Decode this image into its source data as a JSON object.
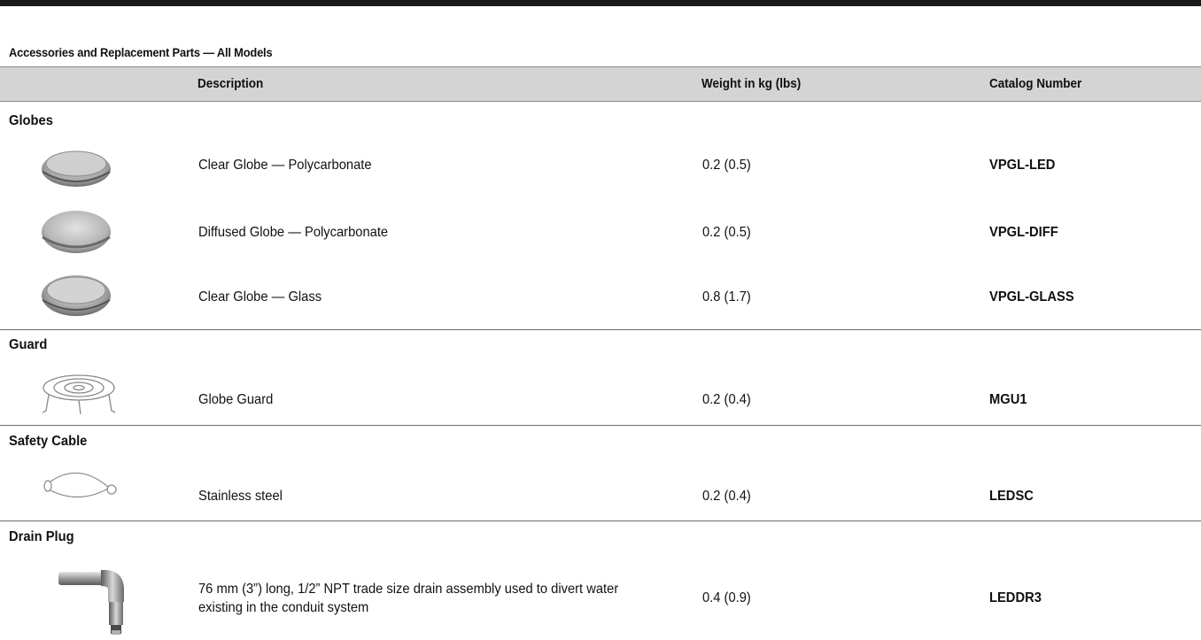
{
  "table": {
    "title": "Accessories and Replacement Parts — All Models",
    "headers": {
      "description": "Description",
      "weight": "Weight in kg (lbs)",
      "catalog": "Catalog Number"
    }
  },
  "sections": [
    {
      "label": "Globes",
      "rows": [
        {
          "icon": "clear-globe-icon",
          "description": "Clear Globe — Polycarbonate",
          "weight": "0.2 (0.5)",
          "catalog": "VPGL-LED"
        },
        {
          "icon": "diffused-globe-icon",
          "description": "Diffused Globe — Polycarbonate",
          "weight": "0.2 (0.5)",
          "catalog": "VPGL-DIFF"
        },
        {
          "icon": "glass-globe-icon",
          "description": "Clear Globe — Glass",
          "weight": "0.8 (1.7)",
          "catalog": "VPGL-GLASS"
        }
      ]
    },
    {
      "label": "Guard",
      "rows": [
        {
          "icon": "globe-guard-icon",
          "description": "Globe Guard",
          "weight": "0.2 (0.4)",
          "catalog": "MGU1"
        }
      ]
    },
    {
      "label": "Safety Cable",
      "rows": [
        {
          "icon": "safety-cable-icon",
          "description": "Stainless steel",
          "weight": "0.2 (0.4)",
          "catalog": "LEDSC"
        }
      ]
    },
    {
      "label": "Drain Plug",
      "rows": [
        {
          "icon": "drain-plug-icon",
          "description": "76 mm (3”) long, 1/2” NPT trade size drain assembly used to divert water existing in the conduit system",
          "weight": "0.4 (0.9)",
          "catalog": "LEDDR3"
        }
      ]
    }
  ]
}
